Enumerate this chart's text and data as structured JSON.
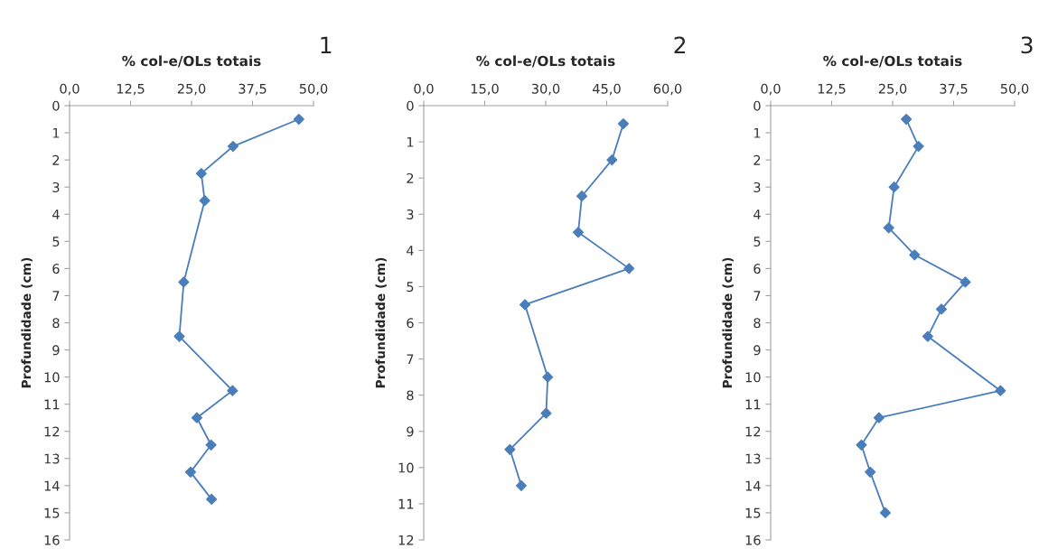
{
  "chart_data": [
    {
      "type": "line",
      "xlabel": "% col-e/OLs totais",
      "ylabel": "Profundidade (cm)",
      "annotations": [
        "1"
      ],
      "marker": "diamond",
      "grid": false,
      "legend": false,
      "xlim": [
        0,
        50
      ],
      "xticks": [
        {
          "value": 0,
          "label": "0,0"
        },
        {
          "value": 12.5,
          "label": "12,5"
        },
        {
          "value": 25,
          "label": "25,0"
        },
        {
          "value": 37.5,
          "label": "37,5"
        },
        {
          "value": 50,
          "label": "50,0"
        }
      ],
      "ylim": [
        16,
        0
      ],
      "yticks": [
        0,
        1,
        2,
        3,
        4,
        5,
        6,
        7,
        8,
        9,
        10,
        11,
        12,
        13,
        14,
        15,
        16
      ],
      "series": [
        {
          "color": "#4a7ebb",
          "x": [
            47.0,
            33.5,
            27.0,
            27.7,
            23.4,
            22.5,
            33.4,
            26.1,
            29.0,
            24.8,
            29.1
          ],
          "values": [
            0.5,
            1.5,
            2.5,
            3.5,
            6.5,
            8.5,
            10.5,
            11.5,
            12.5,
            13.5,
            14.5
          ]
        }
      ]
    },
    {
      "type": "line",
      "xlabel": "% col-e/OLs totais",
      "ylabel": "Profundidade (cm)",
      "annotations": [
        "2"
      ],
      "marker": "diamond",
      "grid": false,
      "legend": false,
      "xlim": [
        0,
        60
      ],
      "xticks": [
        {
          "value": 0,
          "label": "0,0"
        },
        {
          "value": 15,
          "label": "15,0"
        },
        {
          "value": 30,
          "label": "30,0"
        },
        {
          "value": 45,
          "label": "45,0"
        },
        {
          "value": 60,
          "label": "60,0"
        }
      ],
      "ylim": [
        12,
        0
      ],
      "yticks": [
        0,
        1,
        2,
        3,
        4,
        5,
        6,
        7,
        8,
        9,
        10,
        11,
        12
      ],
      "series": [
        {
          "color": "#4a7ebb",
          "x": [
            49.1,
            46.3,
            38.9,
            38.0,
            50.5,
            24.9,
            30.5,
            30.1,
            21.2,
            24.0
          ],
          "values": [
            0.5,
            1.5,
            2.5,
            3.5,
            4.5,
            5.5,
            7.5,
            8.5,
            9.5,
            10.5
          ]
        }
      ]
    },
    {
      "type": "line",
      "xlabel": "% col-e/OLs totais",
      "ylabel": "Profundidade (cm)",
      "annotations": [
        "3"
      ],
      "marker": "diamond",
      "grid": false,
      "legend": false,
      "xlim": [
        0,
        50
      ],
      "xticks": [
        {
          "value": 0,
          "label": "0,0"
        },
        {
          "value": 12.5,
          "label": "12,5"
        },
        {
          "value": 25,
          "label": "25,0"
        },
        {
          "value": 37.5,
          "label": "37,5"
        },
        {
          "value": 50,
          "label": "50,0"
        }
      ],
      "ylim": [
        16,
        0
      ],
      "yticks": [
        0,
        1,
        2,
        3,
        4,
        5,
        6,
        7,
        8,
        9,
        10,
        11,
        12,
        13,
        14,
        15,
        16
      ],
      "series": [
        {
          "color": "#4a7ebb",
          "x": [
            27.8,
            30.3,
            25.3,
            24.2,
            29.5,
            39.9,
            35.0,
            32.2,
            47.1,
            22.2,
            18.6,
            20.4,
            23.5
          ],
          "values": [
            0.5,
            1.5,
            3,
            4.5,
            5.5,
            6.5,
            7.5,
            8.5,
            10.5,
            11.5,
            12.5,
            13.5,
            15
          ]
        }
      ]
    }
  ]
}
